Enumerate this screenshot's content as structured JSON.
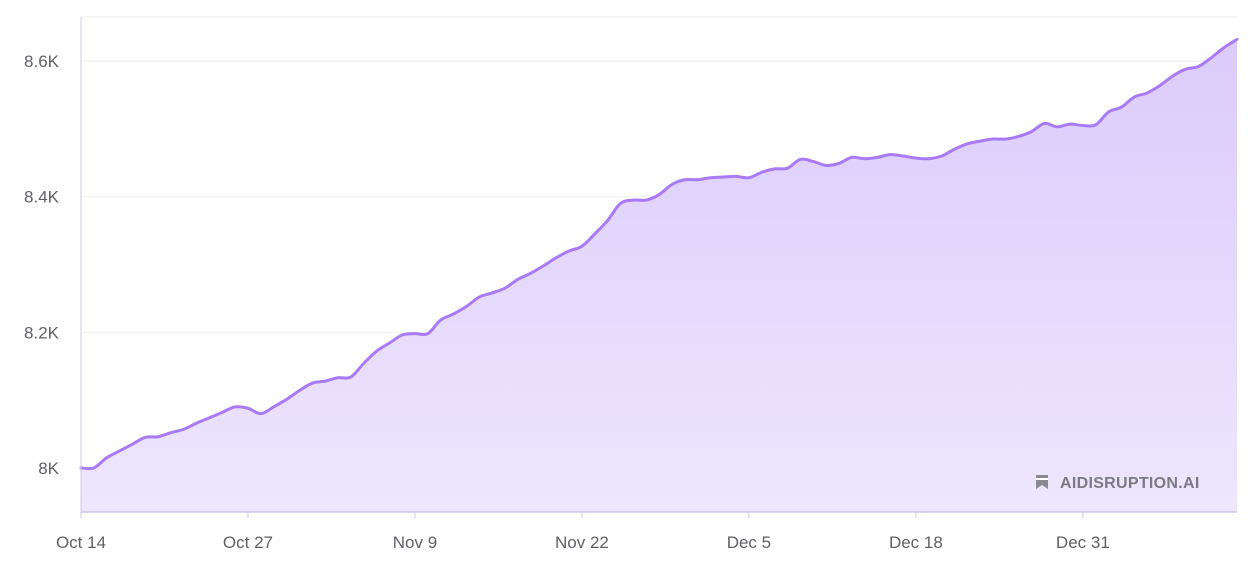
{
  "watermark": "AIDISRUPTION.AI",
  "colors": {
    "line": "#a87bf5",
    "fill_top": "#d9c8fb",
    "fill_bottom": "#ede5fd",
    "grid": "#eeeeee",
    "axis": "#cfc8e6"
  },
  "chart_data": {
    "type": "area",
    "title": "",
    "xlabel": "",
    "ylabel": "",
    "grid": true,
    "ylim": [
      7935,
      8665
    ],
    "xlim": [
      "2023-10-14",
      "2024-01-12"
    ],
    "x_ticks": [
      "Oct 14",
      "Oct 27",
      "Nov 9",
      "Nov 22",
      "Dec 5",
      "Dec 18",
      "Dec 31"
    ],
    "y_ticks": [
      "8K",
      "8.2K",
      "8.4K",
      "8.6K"
    ],
    "y_tick_values": [
      8000,
      8200,
      8400,
      8600
    ],
    "series": [
      {
        "x": [
          "2023-10-14",
          "2023-10-15",
          "2023-10-16",
          "2023-10-17",
          "2023-10-18",
          "2023-10-19",
          "2023-10-20",
          "2023-10-21",
          "2023-10-22",
          "2023-10-23",
          "2023-10-24",
          "2023-10-25",
          "2023-10-26",
          "2023-10-27",
          "2023-10-28",
          "2023-10-29",
          "2023-10-30",
          "2023-10-31",
          "2023-11-01",
          "2023-11-02",
          "2023-11-03",
          "2023-11-04",
          "2023-11-05",
          "2023-11-06",
          "2023-11-07",
          "2023-11-08",
          "2023-11-09",
          "2023-11-10",
          "2023-11-11",
          "2023-11-12",
          "2023-11-13",
          "2023-11-14",
          "2023-11-15",
          "2023-11-16",
          "2023-11-17",
          "2023-11-18",
          "2023-11-19",
          "2023-11-20",
          "2023-11-21",
          "2023-11-22",
          "2023-11-23",
          "2023-11-24",
          "2023-11-25",
          "2023-11-26",
          "2023-11-27",
          "2023-11-28",
          "2023-11-29",
          "2023-11-30",
          "2023-12-01",
          "2023-12-02",
          "2023-12-03",
          "2023-12-04",
          "2023-12-05",
          "2023-12-06",
          "2023-12-07",
          "2023-12-08",
          "2023-12-09",
          "2023-12-10",
          "2023-12-11",
          "2023-12-12",
          "2023-12-13",
          "2023-12-14",
          "2023-12-15",
          "2023-12-16",
          "2023-12-17",
          "2023-12-18",
          "2023-12-19",
          "2023-12-20",
          "2023-12-21",
          "2023-12-22",
          "2023-12-23",
          "2023-12-24",
          "2023-12-25",
          "2023-12-26",
          "2023-12-27",
          "2023-12-28",
          "2023-12-29",
          "2023-12-30",
          "2023-12-31",
          "2024-01-01",
          "2024-01-02",
          "2024-01-03",
          "2024-01-04",
          "2024-01-05",
          "2024-01-06",
          "2024-01-07",
          "2024-01-08",
          "2024-01-09",
          "2024-01-10",
          "2024-01-11",
          "2024-01-12"
        ],
        "values": [
          8000,
          8000,
          8015,
          8025,
          8035,
          8045,
          8046,
          8052,
          8057,
          8066,
          8074,
          8082,
          8090,
          8088,
          8080,
          8090,
          8101,
          8114,
          8125,
          8128,
          8133,
          8134,
          8154,
          8172,
          8184,
          8196,
          8198,
          8198,
          8218,
          8227,
          8238,
          8252,
          8258,
          8265,
          8278,
          8287,
          8298,
          8310,
          8320,
          8327,
          8345,
          8365,
          8390,
          8395,
          8395,
          8403,
          8418,
          8425,
          8425,
          8428,
          8429,
          8430,
          8428,
          8436,
          8441,
          8442,
          8455,
          8452,
          8446,
          8449,
          8458,
          8456,
          8458,
          8462,
          8460,
          8457,
          8456,
          8460,
          8470,
          8478,
          8482,
          8485,
          8485,
          8489,
          8496,
          8508,
          8503,
          8507,
          8505,
          8506,
          8525,
          8532,
          8547,
          8553,
          8564,
          8578,
          8588,
          8592,
          8605,
          8620,
          8632
        ]
      }
    ]
  }
}
